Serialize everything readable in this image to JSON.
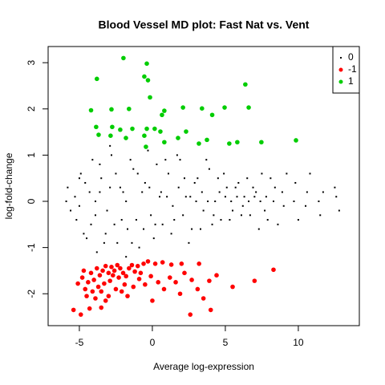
{
  "chart_data": {
    "type": "scatter",
    "title": "Blood Vessel MD plot: Fast Nat vs. Vent",
    "x_label": "Average log-expression",
    "y_label": "log-fold-change",
    "xlim": [
      -7.14,
      14.18
    ],
    "ylim": [
      -2.69,
      3.35
    ],
    "xticks": [
      -5,
      0,
      5,
      10
    ],
    "yticks": [
      -2,
      -1,
      0,
      1,
      2,
      3
    ],
    "grid": false,
    "legend": "top-right",
    "series": [
      {
        "name": "0",
        "color": "#000000",
        "x": [
          -5.8,
          -5.2,
          -4.9,
          -4.5,
          -4.1,
          -3.8,
          -3.5,
          -3.1,
          -2.8,
          -2.4,
          -2.0,
          -1.7,
          -1.3,
          -0.9,
          -0.5,
          -0.1,
          0.3,
          0.7,
          1.1,
          1.5,
          1.9,
          2.3,
          2.7,
          3.1,
          3.5,
          3.9,
          4.3,
          4.7,
          5.1,
          5.5,
          5.9,
          6.3,
          6.7,
          7.1,
          7.5,
          7.9,
          8.4,
          9.0,
          9.8,
          10.6,
          11.5,
          12.6,
          -5.6,
          -5.0,
          -4.7,
          -4.3,
          -3.9,
          -3.6,
          -3.3,
          -2.9,
          -2.6,
          -2.2,
          -1.8,
          -1.5,
          -1.1,
          -0.7,
          -0.3,
          0.1,
          0.5,
          0.9,
          1.3,
          1.7,
          2.1,
          2.5,
          2.9,
          3.3,
          3.7,
          4.1,
          4.5,
          4.9,
          5.3,
          5.7,
          6.1,
          6.5,
          6.9,
          7.3,
          7.7,
          8.1,
          8.6,
          9.2,
          10.0,
          10.8,
          11.7,
          12.8,
          -5.9,
          -5.3,
          -5.0,
          -4.6,
          -4.2,
          -3.9,
          -3.6,
          -3.2,
          -2.9,
          -2.5,
          -2.1,
          -1.8,
          -1.4,
          -1.0,
          -0.6,
          -0.2,
          0.2,
          0.6,
          1.0,
          1.4,
          1.8,
          2.2,
          2.6,
          3.0,
          3.4,
          3.8,
          4.2,
          4.6,
          5.0,
          5.4,
          5.8,
          6.2,
          6.6,
          7.0,
          7.4,
          7.8,
          8.3,
          8.9,
          9.7,
          10.5,
          11.4,
          12.5
        ],
        "y": [
          0.3,
          -0.4,
          0.6,
          -0.8,
          0.9,
          -1.1,
          0.5,
          -0.2,
          1.0,
          -0.9,
          0.2,
          -0.6,
          0.7,
          -1.0,
          0.4,
          -0.3,
          0.8,
          -0.5,
          0.6,
          -0.4,
          0.9,
          0.1,
          -0.6,
          0.5,
          -0.2,
          0.7,
          0.0,
          -0.4,
          0.3,
          -0.2,
          0.4,
          0.1,
          -0.3,
          0.2,
          0.6,
          -0.4,
          0.3,
          -0.1,
          0.4,
          0.2,
          -0.3,
          0.1,
          -0.2,
          0.5,
          -0.7,
          0.2,
          -0.3,
          0.8,
          -0.9,
          1.2,
          -0.5,
          0.3,
          -1.2,
          0.9,
          -0.4,
          0.2,
          1.1,
          -0.8,
          0.1,
          0.9,
          -0.7,
          1.0,
          -0.3,
          -0.9,
          0.4,
          -0.6,
          0.9,
          -0.5,
          0.5,
          0.6,
          -0.4,
          0.3,
          -0.3,
          0.5,
          0.3,
          -0.6,
          -0.2,
          0.5,
          -0.5,
          0.6,
          -0.4,
          0.6,
          0.2,
          -0.2,
          0.0,
          0.1,
          -0.1,
          0.4,
          -0.5,
          0.0,
          0.2,
          -0.7,
          0.3,
          0.6,
          -0.4,
          0.0,
          -0.9,
          0.6,
          -0.6,
          0.3,
          -0.5,
          0.2,
          0.1,
          -0.1,
          0.3,
          0.5,
          0.1,
          0.0,
          0.2,
          0.0,
          -0.3,
          0.2,
          0.1,
          0.0,
          0.1,
          -0.1,
          0.0,
          0.1,
          0.0,
          0.1,
          0.0,
          0.2,
          0.0,
          -0.1,
          0.0,
          0.3
        ]
      },
      {
        "name": "-1",
        "color": "#ff0000",
        "x": [
          -5.4,
          -4.9,
          -4.3,
          -3.9,
          -3.5,
          -3.2,
          -5.1,
          -4.8,
          -4.6,
          -4.4,
          -4.2,
          -4.0,
          -3.8,
          -3.6,
          -3.4,
          -3.2,
          -3.0,
          -2.8,
          -2.6,
          -2.4,
          -2.2,
          -2.0,
          -1.8,
          -1.6,
          -1.4,
          -1.2,
          -1.0,
          -0.6,
          -0.3,
          0.2,
          0.7,
          1.3,
          2.0,
          3.2,
          -4.5,
          -4.1,
          -3.7,
          -3.3,
          -2.9,
          -2.5,
          -2.1,
          -1.7,
          -1.3,
          -0.9,
          -0.5,
          -0.1,
          0.4,
          0.8,
          1.2,
          1.6,
          2.2,
          2.7,
          3.1,
          3.9,
          4.4,
          5.5,
          7.0,
          8.3,
          3.5,
          4.0,
          2.6,
          -3.0,
          -2.3,
          -1.9,
          0.0,
          -0.8,
          1.9,
          -2.7,
          -3.5,
          -4.7
        ],
        "y": [
          -2.35,
          -2.45,
          -2.32,
          -2.1,
          -2.3,
          -2.15,
          -1.78,
          -1.65,
          -1.9,
          -1.75,
          -1.55,
          -1.7,
          -1.45,
          -1.6,
          -1.5,
          -1.4,
          -1.55,
          -1.42,
          -1.5,
          -1.38,
          -1.45,
          -1.55,
          -1.62,
          -1.45,
          -1.38,
          -1.52,
          -1.4,
          -1.35,
          -1.3,
          -1.35,
          -1.32,
          -1.37,
          -1.35,
          -1.35,
          -2.05,
          -1.95,
          -1.85,
          -1.78,
          -1.72,
          -1.9,
          -1.95,
          -2.05,
          -1.85,
          -1.68,
          -1.8,
          -1.62,
          -1.75,
          -1.9,
          -1.65,
          -1.75,
          -1.55,
          -1.7,
          -1.9,
          -1.72,
          -1.6,
          -1.85,
          -1.72,
          -1.48,
          -2.1,
          -2.35,
          -2.45,
          -2.05,
          -1.65,
          -1.8,
          -2.15,
          -1.55,
          -2.0,
          -1.6,
          -1.95,
          -1.5
        ]
      },
      {
        "name": "1",
        "color": "#00cd00",
        "x": [
          -1.98,
          -0.38,
          -3.8,
          -0.55,
          -0.3,
          6.37,
          -4.2,
          -2.8,
          -1.6,
          -0.16,
          2.1,
          3.4,
          4.95,
          6.6,
          0.82,
          0.66,
          4.1,
          -3.85,
          -2.75,
          -2.2,
          -1.37,
          -0.38,
          0.16,
          0.55,
          -3.68,
          -2.86,
          -1.81,
          -0.55,
          1.76,
          0.82,
          -0.44,
          3.19,
          3.74,
          5.27,
          5.82,
          7.47,
          9.84,
          2.31
        ],
        "y": [
          3.1,
          2.98,
          2.65,
          2.7,
          2.62,
          2.53,
          1.97,
          1.99,
          2.0,
          2.25,
          2.03,
          2.01,
          2.03,
          2.03,
          1.96,
          1.87,
          1.87,
          1.61,
          1.61,
          1.55,
          1.57,
          1.57,
          1.57,
          1.51,
          1.44,
          1.42,
          1.37,
          1.42,
          1.37,
          1.28,
          1.18,
          1.25,
          1.33,
          1.25,
          1.28,
          1.28,
          1.32,
          1.51
        ]
      }
    ]
  }
}
